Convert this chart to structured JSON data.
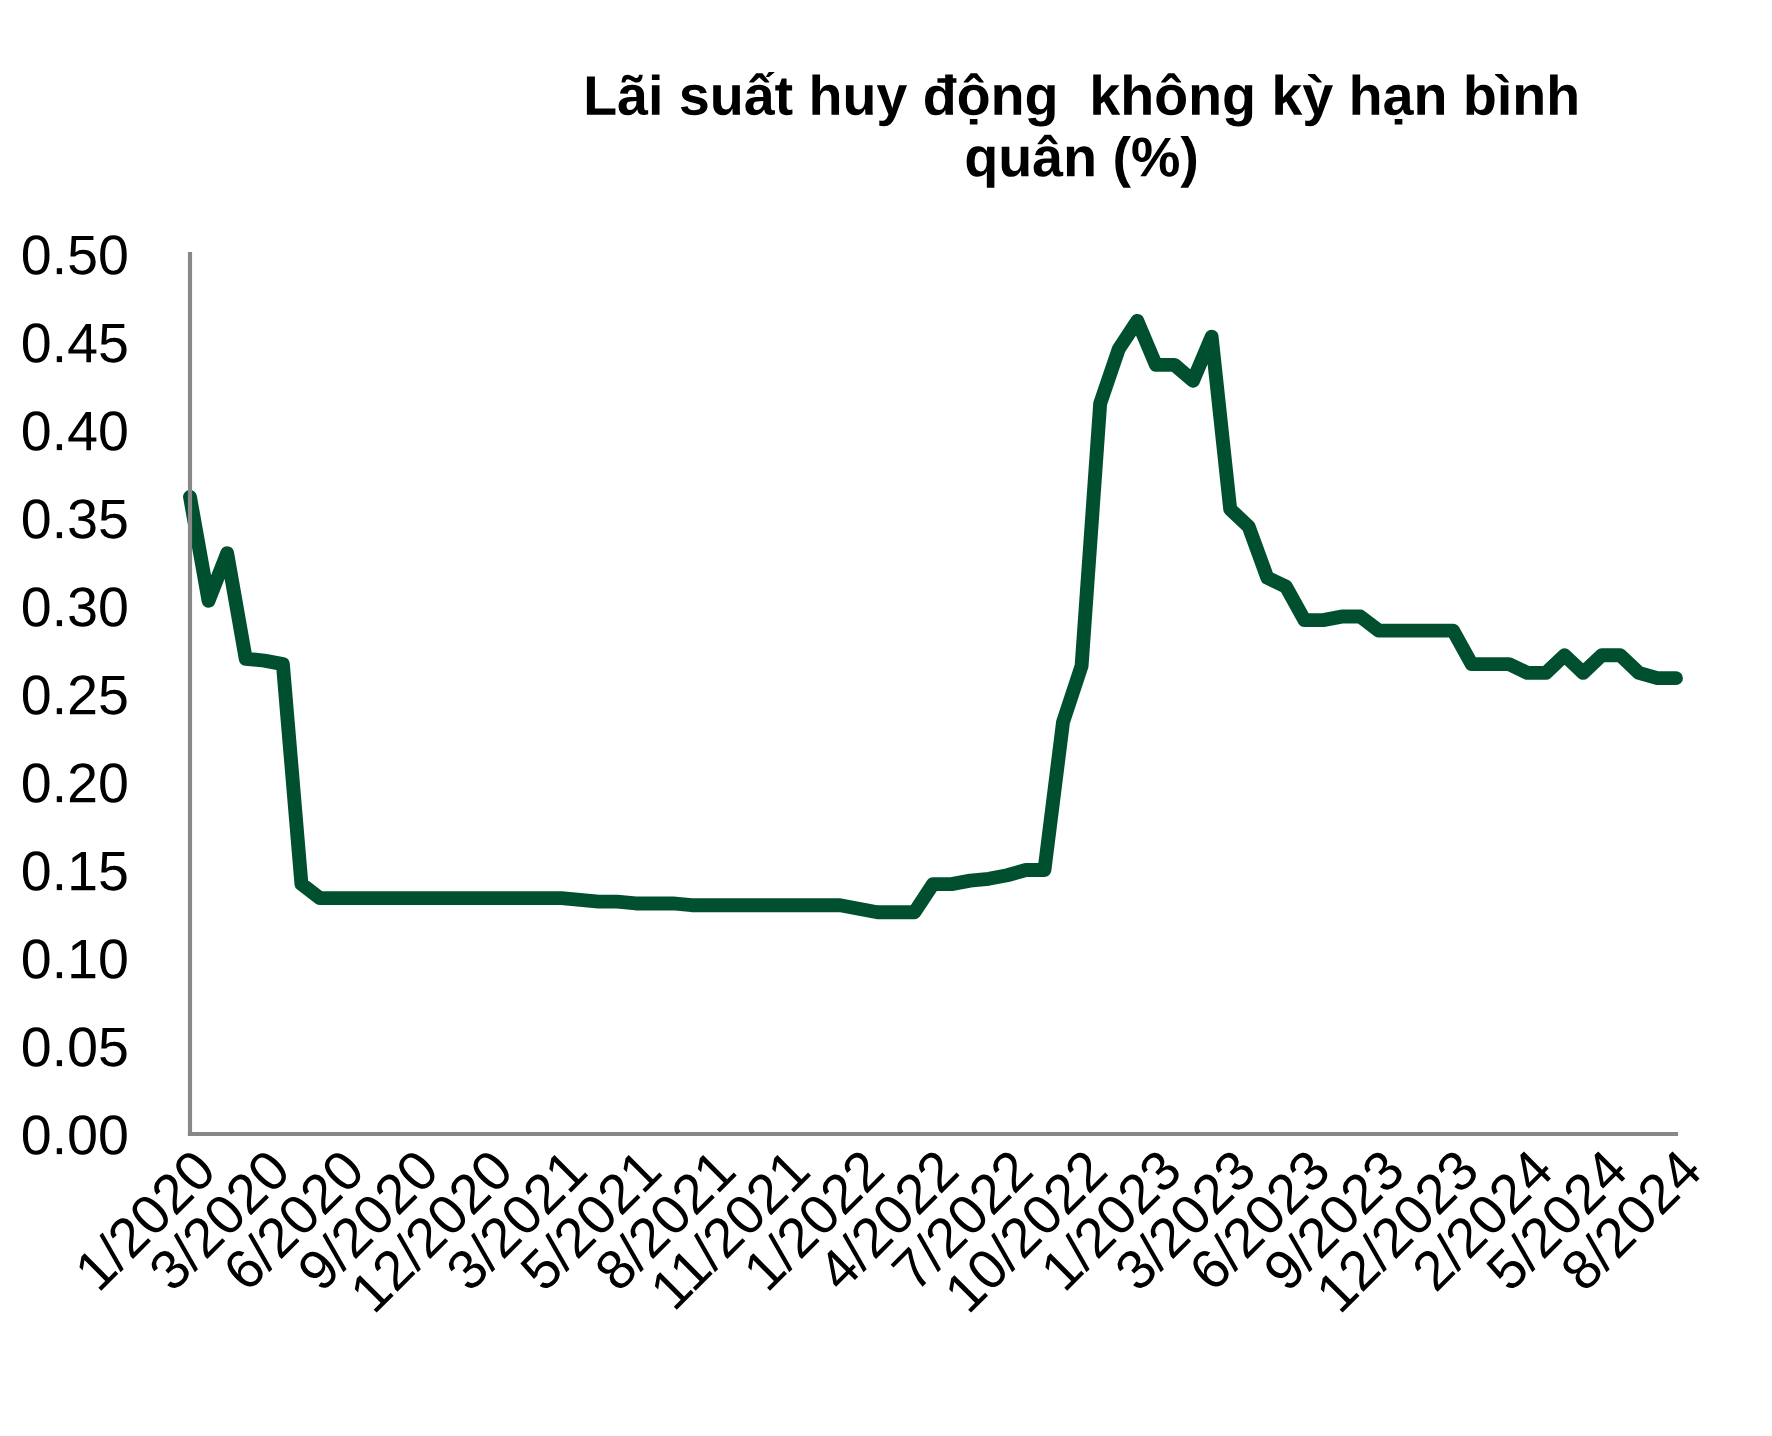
{
  "chart_data": {
    "type": "line",
    "title": "Lãi suất huy động  không kỳ hạn bình\nquân (%)",
    "categories": [
      "1/2020",
      null,
      null,
      null,
      "3/2020",
      null,
      null,
      null,
      "6/2020",
      null,
      null,
      null,
      "9/2020",
      null,
      null,
      null,
      "12/2020",
      null,
      null,
      null,
      "3/2021",
      null,
      null,
      null,
      "5/2021",
      null,
      null,
      null,
      "8/2021",
      null,
      null,
      null,
      "11/2021",
      null,
      null,
      null,
      "1/2022",
      null,
      null,
      null,
      "4/2022",
      null,
      null,
      null,
      "7/2022",
      null,
      null,
      null,
      "10/2022",
      null,
      null,
      null,
      "1/2023",
      null,
      null,
      null,
      "3/2023",
      null,
      null,
      null,
      "6/2023",
      null,
      null,
      null,
      "9/2023",
      null,
      null,
      null,
      "12/2023",
      null,
      null,
      null,
      "2/2024",
      null,
      null,
      null,
      "5/2024",
      null,
      null,
      null,
      "8/2024"
    ],
    "series": [
      {
        "color": "#005030",
        "values": [
          0.362,
          0.303,
          0.33,
          0.27,
          0.269,
          0.267,
          0.142,
          0.134,
          0.134,
          0.134,
          0.134,
          0.134,
          0.134,
          0.134,
          0.134,
          0.134,
          0.134,
          0.134,
          0.134,
          0.134,
          0.134,
          0.133,
          0.132,
          0.132,
          0.131,
          0.131,
          0.131,
          0.13,
          0.13,
          0.13,
          0.13,
          0.13,
          0.13,
          0.13,
          0.13,
          0.13,
          0.128,
          0.126,
          0.126,
          0.126,
          0.142,
          0.142,
          0.144,
          0.145,
          0.147,
          0.15,
          0.15,
          0.234,
          0.266,
          0.415,
          0.446,
          0.462,
          0.437,
          0.437,
          0.428,
          0.453,
          0.355,
          0.345,
          0.316,
          0.311,
          0.292,
          0.292,
          0.294,
          0.294,
          0.286,
          0.286,
          0.286,
          0.286,
          0.286,
          0.267,
          0.267,
          0.267,
          0.262,
          0.262,
          0.272,
          0.262,
          0.272,
          0.272,
          0.262,
          0.259,
          0.259
        ]
      }
    ],
    "ylim": [
      0,
      0.5
    ],
    "yticks": [
      {
        "value": 0,
        "label": "0.00"
      },
      {
        "value": 0.05,
        "label": "0.05"
      },
      {
        "value": 0.1,
        "label": "0.10"
      },
      {
        "value": 0.15,
        "label": "0.15"
      },
      {
        "value": 0.2,
        "label": "0.20"
      },
      {
        "value": 0.25,
        "label": "0.25"
      },
      {
        "value": 0.3,
        "label": "0.30"
      },
      {
        "value": 0.35,
        "label": "0.35"
      },
      {
        "value": 0.4,
        "label": "0.40"
      },
      {
        "value": 0.45,
        "label": "0.45"
      },
      {
        "value": 0.5,
        "label": "0.50"
      }
    ],
    "grid": false,
    "legend": false,
    "marker": "none",
    "line_style": "solid"
  }
}
